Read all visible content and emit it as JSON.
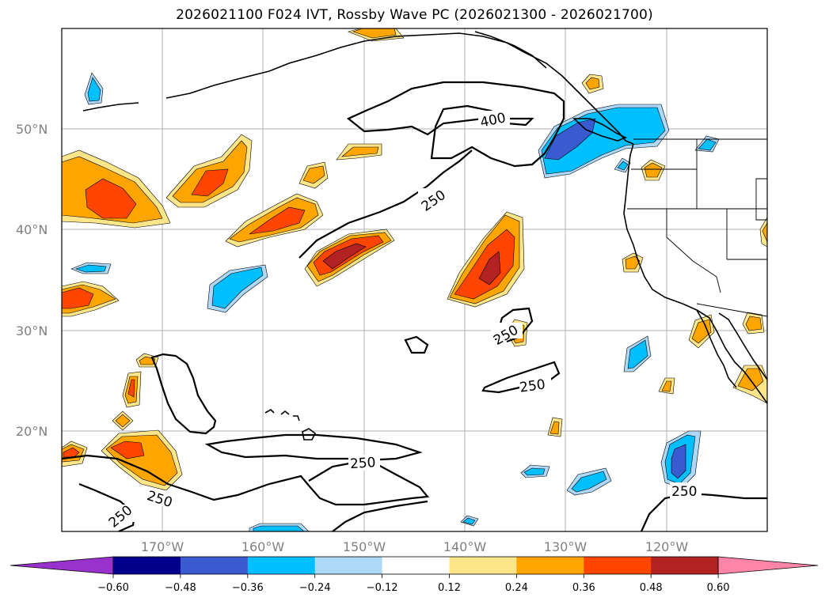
{
  "title": "2026021100 F024 IVT, Rossby Wave PC (2026021300 - 2026021700)",
  "map": {
    "lon_labels": [
      "170°W",
      "160°W",
      "150°W",
      "140°W",
      "130°W",
      "120°W"
    ],
    "lat_labels": [
      "50°N",
      "40°N",
      "30°N",
      "20°N"
    ],
    "contour_labels": [
      "400",
      "250",
      "250",
      "250",
      "250",
      "250",
      "250",
      "250"
    ]
  },
  "colorbar": {
    "colors": [
      "#9932cc",
      "#00008b",
      "#3a5bd0",
      "#00bfff",
      "#add8f7",
      "#ffffff",
      "#fde68a",
      "#ffa500",
      "#ff4500",
      "#b22222",
      "#ff85a8"
    ],
    "tick_labels": [
      "−0.60",
      "−0.48",
      "−0.36",
      "−0.24",
      "−0.12",
      "0.12",
      "0.24",
      "0.36",
      "0.48",
      "0.60"
    ]
  }
}
